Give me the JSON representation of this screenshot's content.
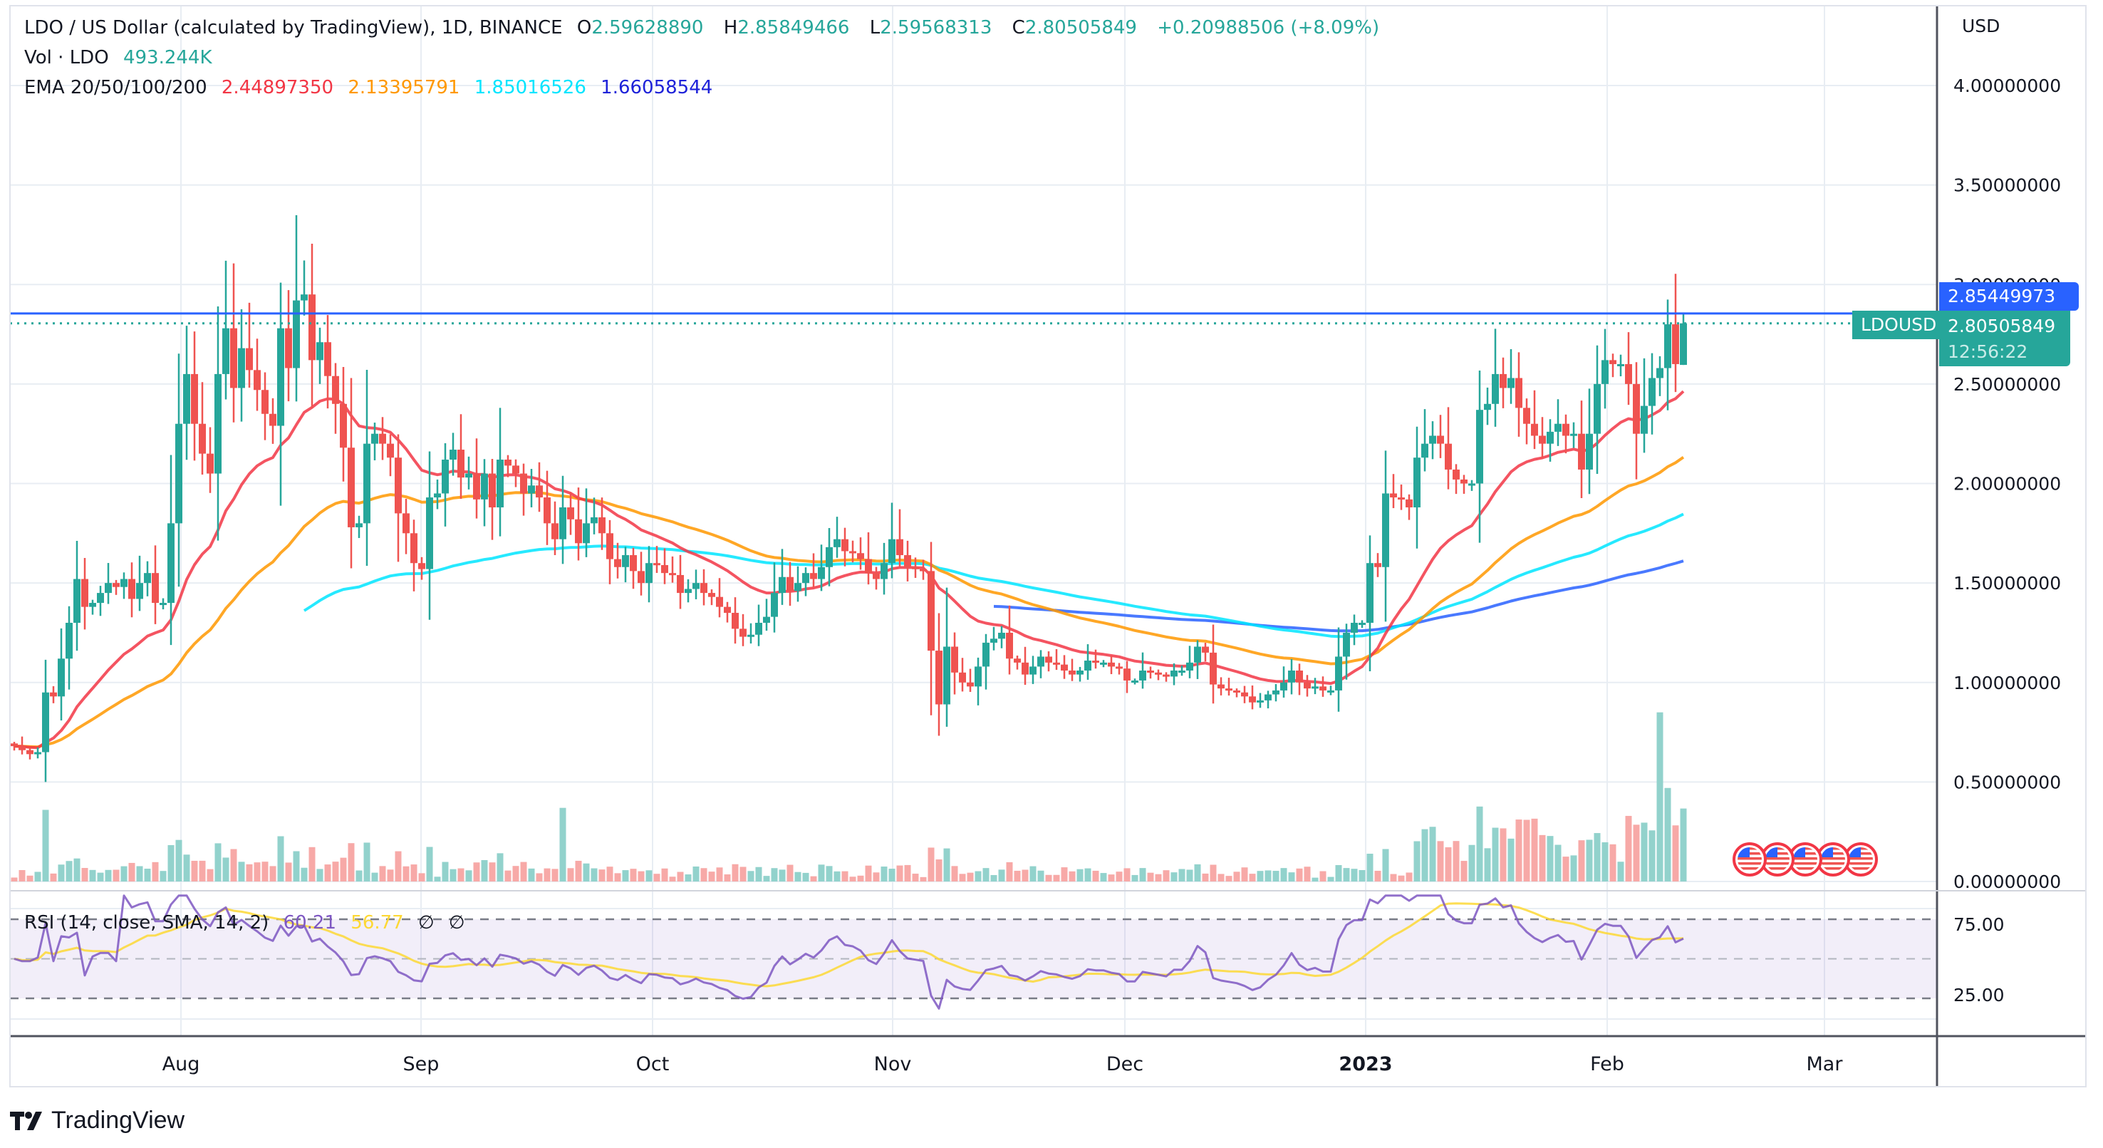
{
  "header": {
    "symbol_title": "LDO / US Dollar (calculated by TradingView), 1D, BINANCE",
    "ohlc": {
      "o_label": "O",
      "o": "2.59628890",
      "h_label": "H",
      "h": "2.85849466",
      "l_label": "L",
      "l": "2.59568313",
      "c_label": "C",
      "c": "2.80505849",
      "change": "+0.20988506 (+8.09%)"
    },
    "volume_label": "Vol · LDO",
    "volume_value": "493.244K",
    "ema_label": "EMA 20/50/100/200",
    "ema_values": [
      "2.44897350",
      "2.13395791",
      "1.85016526",
      "1.66058544"
    ]
  },
  "rsi_legend": {
    "label": "RSI (14, close, SMA, 14, 2)",
    "rsi_value": "60.21",
    "sma_value": "56.77",
    "extra1": "∅",
    "extra2": "∅"
  },
  "price_axis": {
    "currency": "USD",
    "ticks": [
      "4.00000000",
      "3.50000000",
      "3.00000000",
      "2.50000000",
      "2.00000000",
      "1.50000000",
      "1.00000000",
      "0.50000000",
      "0.00000000"
    ],
    "high_line_tag": "2.85449973",
    "last_price_tag": "2.80505849",
    "countdown": "12:56:22",
    "symbol_tag": "LDOUSD"
  },
  "rsi_axis": {
    "ticks": [
      "75.00",
      "25.00"
    ]
  },
  "time_axis": {
    "labels": [
      "Aug",
      "Sep",
      "Oct",
      "Nov",
      "Dec",
      "2023",
      "Feb",
      "Mar"
    ]
  },
  "branding": {
    "name": "TradingView"
  },
  "colors": {
    "up": "#26a69a",
    "down": "#ef5350",
    "up_vol": "#92d2cc",
    "down_vol": "#f7a9a7",
    "ema20": "#f23645",
    "ema50": "#ff9800",
    "ema100": "#00e5ff",
    "ema200": "#2962ff",
    "rsi": "#7e57c2",
    "rsi_sma": "#fdd835",
    "hline": "#2962ff",
    "grid": "#e8edf3",
    "axis": "#50535e"
  },
  "chart_data": {
    "type": "candlestick",
    "title": "LDO / US Dollar (calculated by TradingView), 1D, BINANCE",
    "xlabel": "",
    "ylabel": "USD",
    "ylim": [
      0,
      4.0
    ],
    "x_range": [
      "2022-07-10",
      "2023-02-17"
    ],
    "grid": true,
    "horizontal_line": 2.85449973,
    "last_close": 2.80505849,
    "x_ticks": [
      "Aug",
      "Sep",
      "Oct",
      "Nov",
      "Dec",
      "2023",
      "Feb",
      "Mar"
    ],
    "y_ticks": [
      0,
      0.5,
      1.0,
      1.5,
      2.0,
      2.5,
      3.0,
      3.5,
      4.0
    ],
    "closes": [
      0.68,
      0.66,
      0.64,
      0.65,
      0.95,
      0.93,
      1.12,
      1.3,
      1.52,
      1.38,
      1.4,
      1.45,
      1.5,
      1.48,
      1.52,
      1.42,
      1.5,
      1.55,
      1.4,
      1.4,
      1.8,
      2.3,
      2.55,
      2.3,
      2.15,
      2.05,
      2.55,
      2.78,
      2.48,
      2.68,
      2.57,
      2.47,
      2.35,
      2.29,
      2.78,
      2.58,
      2.92,
      2.95,
      2.62,
      2.71,
      2.54,
      2.4,
      2.18,
      1.78,
      1.8,
      2.2,
      2.25,
      2.2,
      2.13,
      1.85,
      1.75,
      1.6,
      1.57,
      1.93,
      1.95,
      2.12,
      2.17,
      2.03,
      2.05,
      1.92,
      2.05,
      1.88,
      2.12,
      2.09,
      2.05,
      1.95,
      1.99,
      1.93,
      1.8,
      1.72,
      1.88,
      1.82,
      1.7,
      1.8,
      1.83,
      1.75,
      1.62,
      1.58,
      1.64,
      1.56,
      1.5,
      1.6,
      1.59,
      1.55,
      1.54,
      1.45,
      1.47,
      1.5,
      1.45,
      1.43,
      1.38,
      1.35,
      1.27,
      1.23,
      1.24,
      1.3,
      1.33,
      1.45,
      1.53,
      1.46,
      1.5,
      1.55,
      1.52,
      1.58,
      1.68,
      1.72,
      1.66,
      1.65,
      1.62,
      1.55,
      1.52,
      1.6,
      1.72,
      1.64,
      1.58,
      1.57,
      1.56,
      1.16,
      0.89,
      1.18,
      1.05,
      1.0,
      0.98,
      1.08,
      1.2,
      1.22,
      1.25,
      1.12,
      1.1,
      1.04,
      1.08,
      1.13,
      1.1,
      1.09,
      1.06,
      1.04,
      1.06,
      1.11,
      1.1,
      1.1,
      1.08,
      1.07,
      1.01,
      1.01,
      1.06,
      1.05,
      1.04,
      1.03,
      1.06,
      1.06,
      1.1,
      1.18,
      1.15,
      0.99,
      0.97,
      0.96,
      0.95,
      0.93,
      0.9,
      0.91,
      0.94,
      0.96,
      1.0,
      1.06,
      1.0,
      0.97,
      0.98,
      0.96,
      0.96,
      1.13,
      1.25,
      1.3,
      1.3,
      1.6,
      1.58,
      1.95,
      1.93,
      1.92,
      1.88,
      2.13,
      2.2,
      2.24,
      2.2,
      2.07,
      2.02,
      2.0,
      2.0,
      2.37,
      2.4,
      2.55,
      2.48,
      2.53,
      2.38,
      2.3,
      2.24,
      2.2,
      2.26,
      2.3,
      2.24,
      2.25,
      2.07,
      2.25,
      2.5,
      2.62,
      2.6,
      2.6,
      2.5,
      2.25,
      2.39,
      2.53,
      2.58,
      2.8,
      2.6,
      2.81
    ],
    "ema_last": {
      "ema20": 2.4489735,
      "ema50": 2.13395791,
      "ema100": 1.85016526,
      "ema200": 1.66058544
    },
    "volume_last": "493.244K",
    "rsi_last": 60.21,
    "rsi_sma_last": 56.77,
    "rsi_levels": [
      70,
      50,
      30
    ]
  }
}
